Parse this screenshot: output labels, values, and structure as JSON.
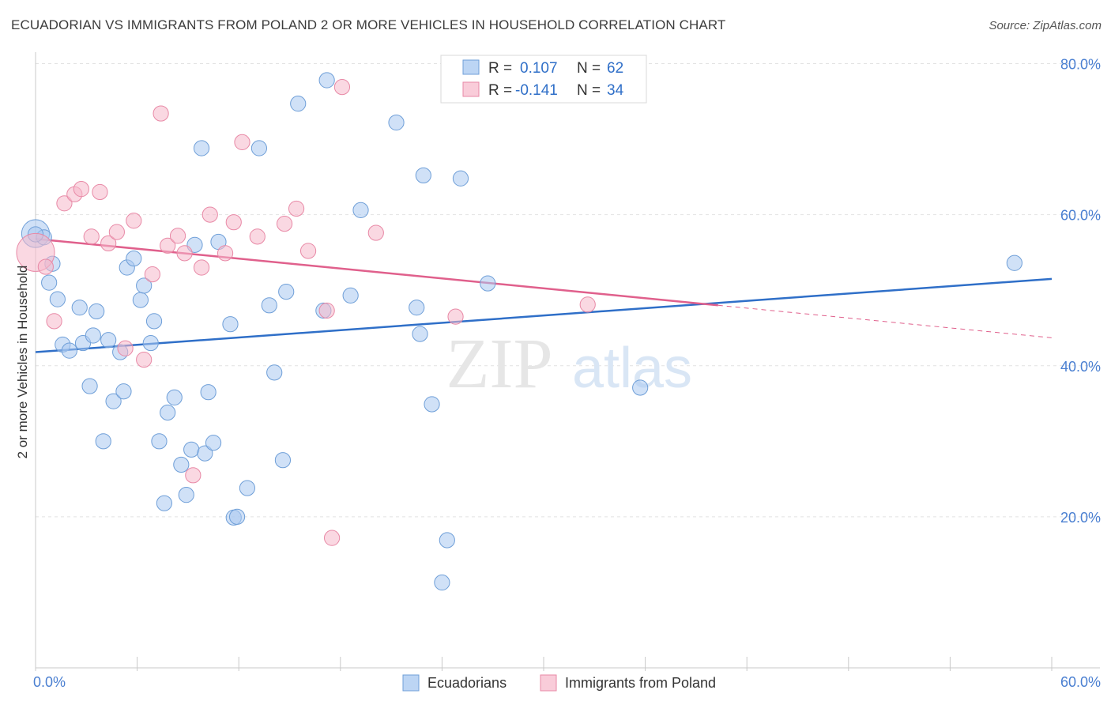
{
  "title": "ECUADORIAN VS IMMIGRANTS FROM POLAND 2 OR MORE VEHICLES IN HOUSEHOLD CORRELATION CHART",
  "source": "Source: ZipAtlas.com",
  "watermark": {
    "zip": "ZIP",
    "atlas": "atlas"
  },
  "legend_box": {
    "rows": [
      {
        "r_label": "R =",
        "r_value": "0.107",
        "n_label": "N =",
        "n_value": "62",
        "color": "#a9c8f0"
      },
      {
        "r_label": "R =",
        "r_value": "-0.141",
        "n_label": "N =",
        "n_value": "34",
        "color": "#f6b8cb"
      }
    ]
  },
  "chart_data": {
    "type": "scatter",
    "title": "ECUADORIAN VS IMMIGRANTS FROM POLAND 2 OR MORE VEHICLES IN HOUSEHOLD CORRELATION CHART",
    "xlabel": "",
    "ylabel": "2 or more Vehicles in Household",
    "xlim": [
      0,
      60
    ],
    "ylim": [
      0,
      83
    ],
    "x_tick_labels": [
      "0.0%",
      "60.0%"
    ],
    "y_ticks": [
      20,
      40,
      60,
      80
    ],
    "y_tick_labels": [
      "20.0%",
      "40.0%",
      "60.0%",
      "80.0%"
    ],
    "grid": true,
    "legend_position": "bottom-center",
    "series": [
      {
        "name": "Ecuadorians",
        "color": "#a9c8f0",
        "stroke": "#6f9fd8",
        "line_color": "#2f6fc8",
        "trend": {
          "x": [
            0,
            60
          ],
          "y": [
            41.8,
            51.5
          ]
        },
        "points": [
          [
            0.0,
            57.5
          ],
          [
            0.5,
            57.0
          ],
          [
            1.0,
            53.5
          ],
          [
            0.8,
            51.0
          ],
          [
            1.3,
            48.8
          ],
          [
            1.6,
            42.8
          ],
          [
            2.0,
            42.0
          ],
          [
            2.6,
            47.7
          ],
          [
            2.8,
            43.0
          ],
          [
            3.2,
            37.3
          ],
          [
            3.4,
            44.0
          ],
          [
            3.6,
            47.2
          ],
          [
            4.0,
            30.0
          ],
          [
            4.3,
            43.4
          ],
          [
            4.6,
            35.3
          ],
          [
            5.0,
            41.8
          ],
          [
            5.2,
            36.6
          ],
          [
            5.4,
            53.0
          ],
          [
            5.8,
            54.2
          ],
          [
            6.2,
            48.7
          ],
          [
            6.4,
            50.6
          ],
          [
            6.8,
            43.0
          ],
          [
            7.0,
            45.9
          ],
          [
            7.3,
            30.0
          ],
          [
            7.6,
            21.8
          ],
          [
            7.8,
            33.8
          ],
          [
            8.2,
            35.8
          ],
          [
            8.6,
            26.9
          ],
          [
            8.9,
            22.9
          ],
          [
            9.2,
            28.9
          ],
          [
            9.4,
            56.0
          ],
          [
            9.8,
            68.8
          ],
          [
            10.0,
            28.4
          ],
          [
            10.2,
            36.5
          ],
          [
            10.5,
            29.8
          ],
          [
            10.8,
            56.4
          ],
          [
            11.5,
            45.5
          ],
          [
            11.7,
            19.9
          ],
          [
            11.9,
            20.0
          ],
          [
            12.5,
            23.8
          ],
          [
            13.2,
            68.8
          ],
          [
            13.8,
            48.0
          ],
          [
            14.1,
            39.1
          ],
          [
            14.6,
            27.5
          ],
          [
            14.8,
            49.8
          ],
          [
            15.5,
            74.7
          ],
          [
            17.0,
            47.3
          ],
          [
            17.2,
            77.8
          ],
          [
            18.6,
            49.3
          ],
          [
            19.2,
            60.6
          ],
          [
            21.3,
            72.2
          ],
          [
            22.5,
            47.7
          ],
          [
            22.7,
            44.2
          ],
          [
            22.9,
            65.2
          ],
          [
            23.4,
            34.9
          ],
          [
            24.0,
            11.3
          ],
          [
            24.3,
            16.9
          ],
          [
            25.1,
            64.8
          ],
          [
            26.7,
            50.9
          ],
          [
            35.7,
            37.1
          ],
          [
            57.8,
            53.6
          ],
          [
            0.0,
            57.4
          ]
        ],
        "sizes": [
          22,
          12,
          12,
          12,
          12,
          12,
          12,
          12,
          12,
          12,
          12,
          12,
          12,
          12,
          12,
          12,
          12,
          12,
          12,
          12,
          12,
          12,
          12,
          12,
          12,
          12,
          12,
          12,
          12,
          12,
          12,
          12,
          12,
          12,
          12,
          12,
          12,
          12,
          12,
          12,
          12,
          12,
          12,
          12,
          12,
          12,
          12,
          12,
          12,
          12,
          12,
          12,
          12,
          12,
          12,
          12,
          12,
          12,
          12,
          12,
          12,
          12
        ]
      },
      {
        "name": "Immigrants from Poland",
        "color": "#f6b8cb",
        "stroke": "#e889a6",
        "line_color": "#e0608c",
        "trend": {
          "x": [
            0,
            40.3,
            60
          ],
          "y": [
            56.8,
            48.0,
            43.7
          ]
        },
        "points": [
          [
            0.0,
            55.0
          ],
          [
            0.6,
            53.1
          ],
          [
            1.1,
            45.9
          ],
          [
            1.7,
            61.5
          ],
          [
            2.3,
            62.7
          ],
          [
            2.7,
            63.4
          ],
          [
            3.3,
            57.1
          ],
          [
            3.8,
            63.0
          ],
          [
            4.3,
            56.2
          ],
          [
            4.8,
            57.7
          ],
          [
            5.3,
            42.3
          ],
          [
            5.8,
            59.2
          ],
          [
            6.4,
            40.8
          ],
          [
            6.9,
            52.1
          ],
          [
            7.4,
            73.4
          ],
          [
            7.8,
            55.9
          ],
          [
            8.4,
            57.2
          ],
          [
            8.8,
            54.9
          ],
          [
            9.3,
            25.5
          ],
          [
            9.8,
            53.0
          ],
          [
            10.3,
            60.0
          ],
          [
            11.2,
            54.9
          ],
          [
            11.7,
            59.0
          ],
          [
            12.2,
            69.6
          ],
          [
            13.1,
            57.1
          ],
          [
            14.7,
            58.8
          ],
          [
            15.4,
            60.8
          ],
          [
            16.1,
            55.2
          ],
          [
            17.2,
            47.3
          ],
          [
            17.5,
            17.2
          ],
          [
            18.1,
            76.9
          ],
          [
            20.1,
            57.6
          ],
          [
            24.8,
            46.5
          ],
          [
            32.6,
            48.1
          ]
        ],
        "sizes": [
          30,
          12,
          12,
          12,
          12,
          12,
          12,
          12,
          12,
          12,
          12,
          12,
          12,
          12,
          12,
          12,
          12,
          12,
          12,
          12,
          12,
          12,
          12,
          12,
          12,
          12,
          12,
          12,
          12,
          12,
          12,
          12,
          12,
          12
        ]
      }
    ]
  }
}
